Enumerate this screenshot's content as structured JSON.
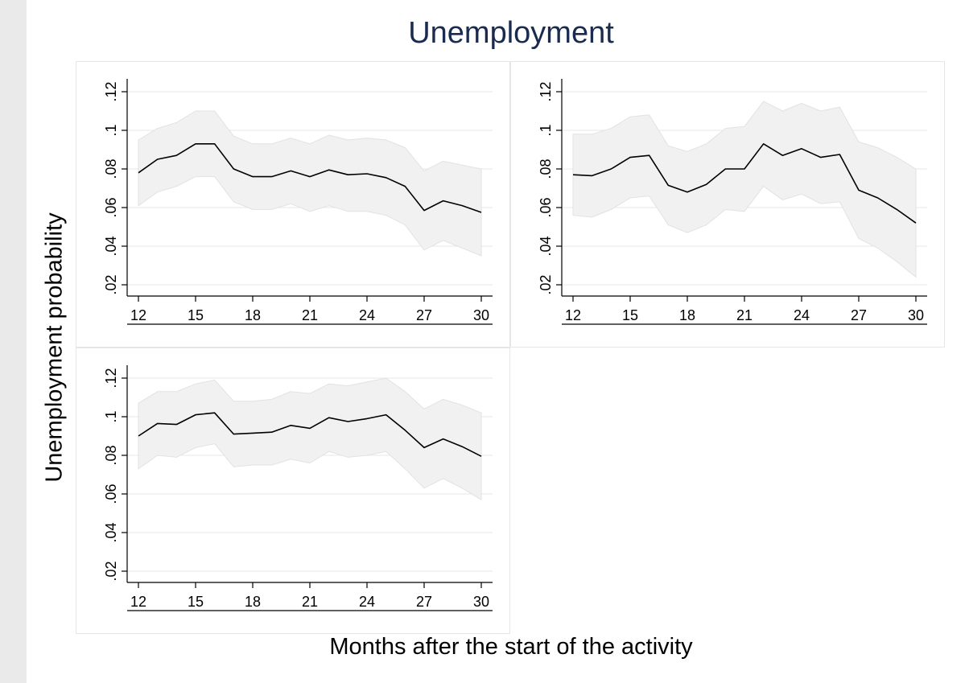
{
  "title": "Unemployment",
  "ylabel": "Unemployment probability",
  "xlabel": "Months after the start of the activity",
  "colors": {
    "title": "#1a2b50",
    "line": "#000000",
    "band": "#f1f1f1",
    "band_edge": "#e2e2e2",
    "grid": "#ececec",
    "background": "#ffffff",
    "outer_background": "#eaeaea"
  },
  "chart_data": [
    {
      "type": "line",
      "panel": "top-left",
      "x": [
        12,
        13,
        14,
        15,
        16,
        17,
        18,
        19,
        20,
        21,
        22,
        23,
        24,
        25,
        26,
        27,
        28,
        29,
        30
      ],
      "series": [
        {
          "values": [
            0.078,
            0.085,
            0.087,
            0.093,
            0.093,
            0.08,
            0.076,
            0.076,
            0.079,
            0.076,
            0.0795,
            0.077,
            0.0775,
            0.0755,
            0.071,
            0.0585,
            0.0635,
            0.061,
            0.0575
          ],
          "upper": [
            0.095,
            0.101,
            0.104,
            0.11,
            0.11,
            0.097,
            0.093,
            0.093,
            0.096,
            0.093,
            0.0975,
            0.095,
            0.096,
            0.095,
            0.091,
            0.079,
            0.084,
            0.082,
            0.08
          ],
          "lower": [
            0.061,
            0.068,
            0.071,
            0.076,
            0.076,
            0.063,
            0.059,
            0.059,
            0.062,
            0.058,
            0.061,
            0.058,
            0.058,
            0.056,
            0.051,
            0.038,
            0.043,
            0.039,
            0.035
          ]
        }
      ],
      "xticks": [
        "12",
        "15",
        "18",
        "21",
        "24",
        "27",
        "30"
      ],
      "yticks": [
        ".02",
        ".04",
        ".06",
        ".08",
        ".1",
        ".12"
      ],
      "xlim": [
        12,
        30
      ],
      "ylim": [
        0.02,
        0.12
      ],
      "grid": true
    },
    {
      "type": "line",
      "panel": "top-right",
      "x": [
        12,
        13,
        14,
        15,
        16,
        17,
        18,
        19,
        20,
        21,
        22,
        23,
        24,
        25,
        26,
        27,
        28,
        29,
        30
      ],
      "series": [
        {
          "values": [
            0.077,
            0.0765,
            0.08,
            0.086,
            0.087,
            0.0715,
            0.068,
            0.072,
            0.08,
            0.08,
            0.093,
            0.087,
            0.0905,
            0.086,
            0.0875,
            0.069,
            0.065,
            0.059,
            0.052
          ],
          "upper": [
            0.098,
            0.098,
            0.101,
            0.107,
            0.108,
            0.092,
            0.089,
            0.093,
            0.101,
            0.102,
            0.115,
            0.11,
            0.114,
            0.11,
            0.112,
            0.094,
            0.091,
            0.086,
            0.08
          ],
          "lower": [
            0.056,
            0.055,
            0.059,
            0.065,
            0.066,
            0.051,
            0.047,
            0.051,
            0.059,
            0.058,
            0.071,
            0.064,
            0.067,
            0.062,
            0.063,
            0.044,
            0.039,
            0.032,
            0.024
          ]
        }
      ],
      "xticks": [
        "12",
        "15",
        "18",
        "21",
        "24",
        "27",
        "30"
      ],
      "yticks": [
        ".02",
        ".04",
        ".06",
        ".08",
        ".1",
        ".12"
      ],
      "xlim": [
        12,
        30
      ],
      "ylim": [
        0.02,
        0.12
      ],
      "grid": true
    },
    {
      "type": "line",
      "panel": "bottom-left",
      "x": [
        12,
        13,
        14,
        15,
        16,
        17,
        18,
        19,
        20,
        21,
        22,
        23,
        24,
        25,
        26,
        27,
        28,
        29,
        30
      ],
      "series": [
        {
          "values": [
            0.09,
            0.0965,
            0.096,
            0.101,
            0.102,
            0.091,
            0.0915,
            0.092,
            0.0955,
            0.094,
            0.0995,
            0.0975,
            0.099,
            0.101,
            0.093,
            0.084,
            0.0885,
            0.0845,
            0.0795
          ],
          "upper": [
            0.107,
            0.113,
            0.113,
            0.117,
            0.119,
            0.108,
            0.108,
            0.109,
            0.113,
            0.112,
            0.117,
            0.116,
            0.118,
            0.12,
            0.113,
            0.104,
            0.109,
            0.106,
            0.102
          ],
          "lower": [
            0.073,
            0.08,
            0.079,
            0.084,
            0.086,
            0.074,
            0.075,
            0.075,
            0.078,
            0.076,
            0.082,
            0.079,
            0.08,
            0.082,
            0.073,
            0.063,
            0.068,
            0.063,
            0.057
          ]
        }
      ],
      "xticks": [
        "12",
        "15",
        "18",
        "21",
        "24",
        "27",
        "30"
      ],
      "yticks": [
        ".02",
        ".04",
        ".06",
        ".08",
        ".1",
        ".12"
      ],
      "xlim": [
        12,
        30
      ],
      "ylim": [
        0.02,
        0.12
      ],
      "grid": true
    }
  ]
}
